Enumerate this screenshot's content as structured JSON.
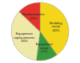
{
  "chart_data": {
    "type": "pie",
    "categories": [
      "Building initial",
      "Equipment initial",
      "Equipment replacements",
      "Replacements"
    ],
    "values": [
      40,
      12,
      35,
      13
    ],
    "value_labels": [
      "40%",
      "12%",
      "35%",
      "13%"
    ],
    "colors": [
      "#f3d51a",
      "#3c9a3e",
      "#efe9a8",
      "#e2342b"
    ],
    "data_labels": true
  }
}
